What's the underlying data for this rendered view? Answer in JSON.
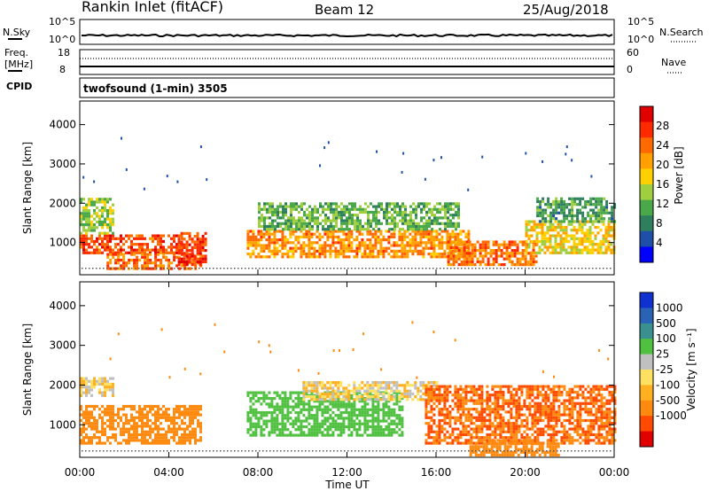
{
  "header": {
    "station": "Rankin Inlet (fitACF)",
    "beam": "Beam 12",
    "date": "25/Aug/2018"
  },
  "noise_panel": {
    "left_label": "N.Sky",
    "right_label": "N.Search",
    "ytop_left": "10^5",
    "ybot_left": "10^0",
    "ytop_right": "10^5",
    "ybot_right": "10^0"
  },
  "freq_panel": {
    "left_label_line1": "Freq.",
    "left_label_line2": "[MHz]",
    "right_label": "Nave",
    "left_ticks": [
      "18",
      "8"
    ],
    "right_ticks": [
      "60",
      "0"
    ]
  },
  "cpid_panel": {
    "label": "CPID",
    "program": "twofsound (1-min) 3505"
  },
  "colors": {
    "power": [
      "#0000ff",
      "#1f4fa8",
      "#2f7f5f",
      "#4aa84a",
      "#9fcf3f",
      "#ffd000",
      "#ff9f00",
      "#ff6a00",
      "#ff2a00",
      "#e00000"
    ],
    "velocity": [
      "#1030d0",
      "#2a62b5",
      "#3a8f8f",
      "#50c040",
      "#c0c0c0",
      "#ffe060",
      "#ffb020",
      "#ff8a10",
      "#ff4a00",
      "#e00000"
    ]
  },
  "chart_data": [
    {
      "type": "heatmap",
      "title": "Power",
      "ylabel": "Slant Range [km]",
      "xlabel": "Time UT",
      "x_ticks": [
        "00:00",
        "04:00",
        "08:00",
        "12:00",
        "16:00",
        "20:00",
        "00:00"
      ],
      "xlim_hours": [
        0,
        24
      ],
      "y_ticks": [
        1000,
        2000,
        3000,
        4000
      ],
      "ylim": [
        180,
        4600
      ],
      "colorbar_label": "Power [dB]",
      "colorbar_ticks": [
        4,
        8,
        12,
        16,
        20,
        24,
        28
      ],
      "colorbar_range": [
        0,
        32
      ],
      "bands": [
        {
          "t0": 0.0,
          "t1": 4.6,
          "r0": 700,
          "r1": 1200,
          "value": 26
        },
        {
          "t0": 0.0,
          "t1": 1.5,
          "r0": 1200,
          "r1": 2100,
          "value": 14
        },
        {
          "t0": 1.2,
          "t1": 5.4,
          "r0": 300,
          "r1": 700,
          "value": 24
        },
        {
          "t0": 4.4,
          "t1": 5.6,
          "r0": 400,
          "r1": 1200,
          "value": 27
        },
        {
          "t0": 7.5,
          "t1": 17.5,
          "r0": 600,
          "r1": 1300,
          "value": 22
        },
        {
          "t0": 8.0,
          "t1": 17.0,
          "r0": 1300,
          "r1": 2000,
          "value": 12
        },
        {
          "t0": 16.5,
          "t1": 20.5,
          "r0": 400,
          "r1": 1000,
          "value": 24
        },
        {
          "t0": 20.0,
          "t1": 24.0,
          "r0": 700,
          "r1": 1500,
          "value": 18
        },
        {
          "t0": 20.5,
          "t1": 24.0,
          "r0": 1500,
          "r1": 2100,
          "value": 10
        }
      ]
    },
    {
      "type": "heatmap",
      "title": "Velocity",
      "ylabel": "Slant Range [km]",
      "xlabel": "Time UT",
      "x_ticks": [
        "00:00",
        "04:00",
        "08:00",
        "12:00",
        "16:00",
        "20:00",
        "00:00"
      ],
      "xlim_hours": [
        0,
        24
      ],
      "y_ticks": [
        1000,
        2000,
        3000,
        4000
      ],
      "ylim": [
        180,
        4600
      ],
      "colorbar_label": "Velocity [m s⁻¹]",
      "colorbar_ticks": [
        "1000",
        "500",
        "100",
        "25",
        "-25",
        "-100",
        "-500",
        "-1000"
      ],
      "bands": [
        {
          "t0": 0.0,
          "t1": 5.4,
          "r0": 500,
          "r1": 1500,
          "value": -300
        },
        {
          "t0": 0.0,
          "t1": 1.5,
          "r0": 1700,
          "r1": 2200,
          "value": 0
        },
        {
          "t0": 7.5,
          "t1": 14.5,
          "r0": 700,
          "r1": 1800,
          "value": 200
        },
        {
          "t0": 10.0,
          "t1": 16.0,
          "r0": 1600,
          "r1": 2100,
          "value": 0
        },
        {
          "t0": 15.5,
          "t1": 24.0,
          "r0": 500,
          "r1": 2000,
          "value": -500
        },
        {
          "t0": 17.5,
          "t1": 21.5,
          "r0": 200,
          "r1": 600,
          "value": -300
        }
      ]
    }
  ]
}
